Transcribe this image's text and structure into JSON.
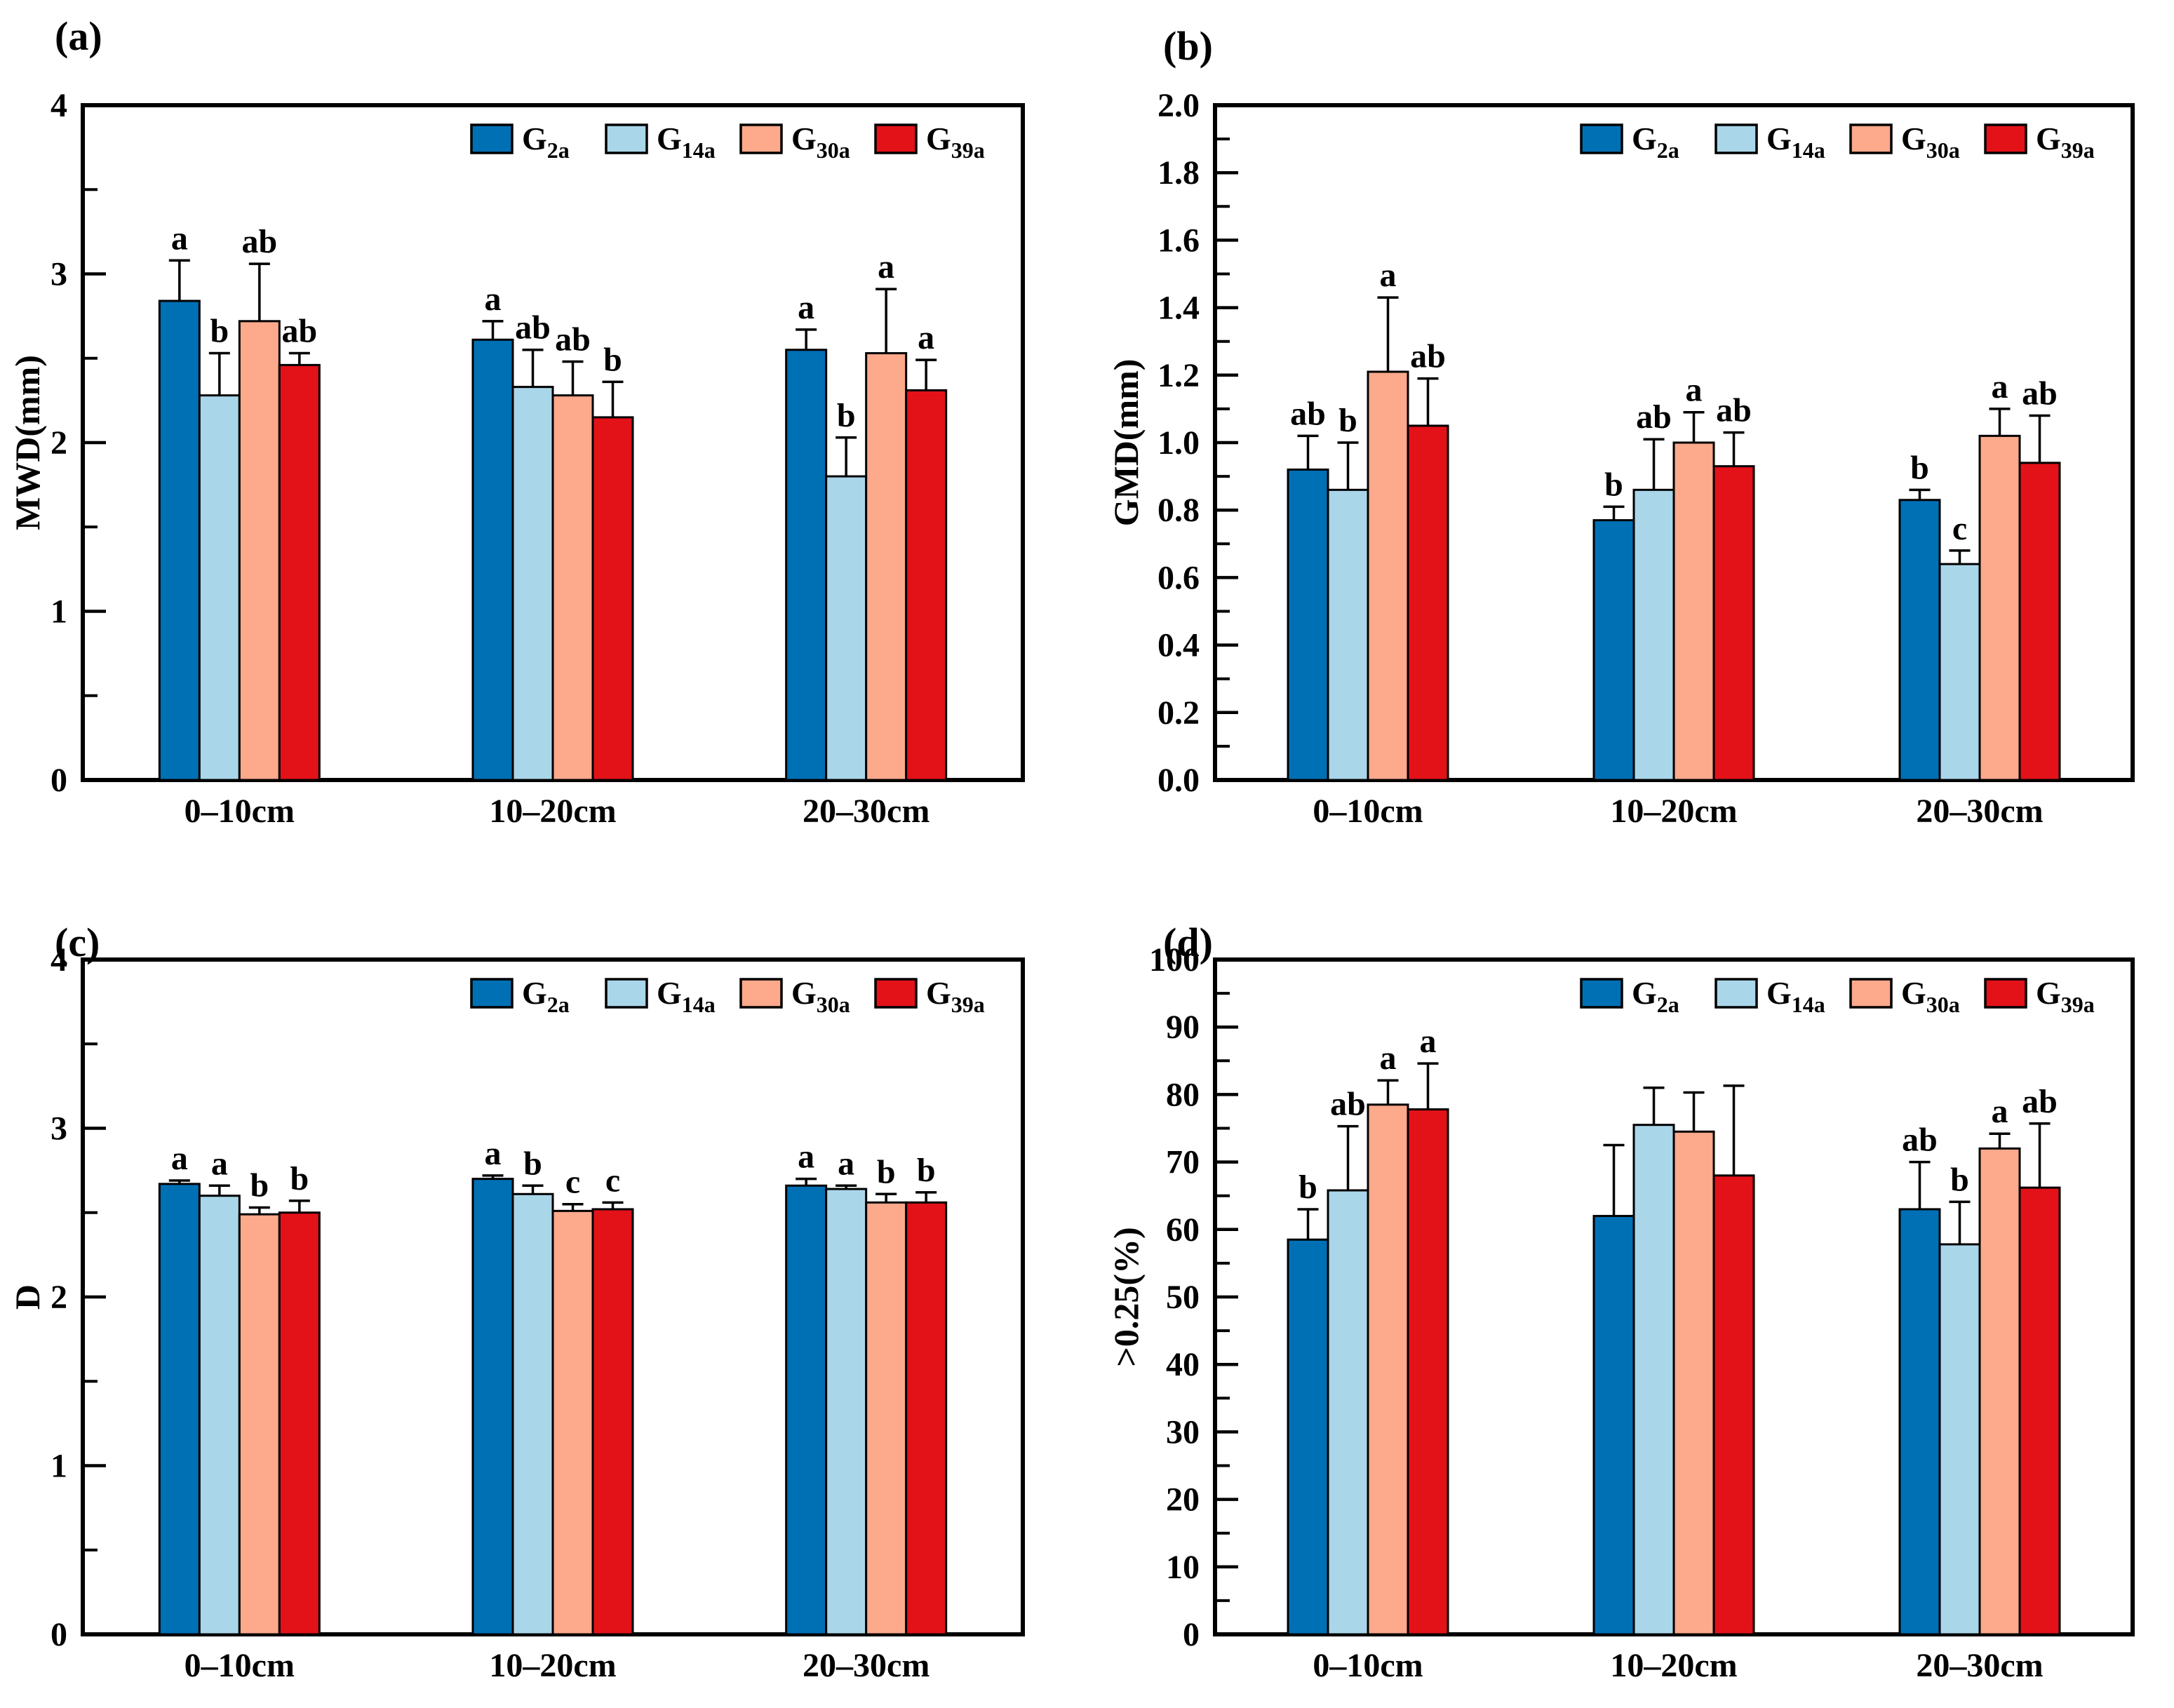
{
  "figure": {
    "background": "#ffffff",
    "axis_color": "#000000",
    "panel_labels": [
      "(a)",
      "(b)",
      "(c)",
      "(d)"
    ]
  },
  "chart_data": [
    {
      "panel_label": "(a)",
      "type": "bar",
      "title": "",
      "xlabel": "",
      "ylabel": "MWD(mm)",
      "ylim": [
        0,
        4
      ],
      "ytick_step": 1,
      "y_decimals": 0,
      "minor_divisions": 2,
      "grid": false,
      "legend_position": "top-right-inside",
      "categories": [
        "0–10cm",
        "10–20cm",
        "20–30cm"
      ],
      "series": [
        {
          "label": "G",
          "label_sub": "2a",
          "color": "#0070B5",
          "values": [
            2.84,
            2.61,
            2.55
          ],
          "errors": [
            0.24,
            0.11,
            0.12
          ],
          "sig_letters": [
            "a",
            "a",
            "a"
          ]
        },
        {
          "label": "G",
          "label_sub": "14a",
          "color": "#AAD6E9",
          "values": [
            2.28,
            2.33,
            1.8
          ],
          "errors": [
            0.25,
            0.22,
            0.23
          ],
          "sig_letters": [
            "b",
            "ab",
            "b"
          ]
        },
        {
          "label": "G",
          "label_sub": "30a",
          "color": "#FCA98C",
          "values": [
            2.72,
            2.28,
            2.53
          ],
          "errors": [
            0.34,
            0.2,
            0.38
          ],
          "sig_letters": [
            "ab",
            "ab",
            "a"
          ]
        },
        {
          "label": "G",
          "label_sub": "39a",
          "color": "#E31219",
          "values": [
            2.46,
            2.15,
            2.31
          ],
          "errors": [
            0.07,
            0.21,
            0.18
          ],
          "sig_letters": [
            "ab",
            "b",
            "a"
          ]
        }
      ]
    },
    {
      "panel_label": "(b)",
      "type": "bar",
      "title": "",
      "xlabel": "",
      "ylabel": "GMD(mm)",
      "ylim": [
        0,
        2
      ],
      "ytick_step": 0.2,
      "y_decimals": 1,
      "minor_divisions": 2,
      "grid": false,
      "legend_position": "top-right-inside",
      "categories": [
        "0–10cm",
        "10–20cm",
        "20–30cm"
      ],
      "series": [
        {
          "label": "G",
          "label_sub": "2a",
          "color": "#0070B5",
          "values": [
            0.92,
            0.77,
            0.83
          ],
          "errors": [
            0.1,
            0.04,
            0.03
          ],
          "sig_letters": [
            "ab",
            "b",
            "b"
          ]
        },
        {
          "label": "G",
          "label_sub": "14a",
          "color": "#AAD6E9",
          "values": [
            0.86,
            0.86,
            0.64
          ],
          "errors": [
            0.14,
            0.15,
            0.04
          ],
          "sig_letters": [
            "b",
            "ab",
            "c"
          ]
        },
        {
          "label": "G",
          "label_sub": "30a",
          "color": "#FCA98C",
          "values": [
            1.21,
            1.0,
            1.02
          ],
          "errors": [
            0.22,
            0.09,
            0.08
          ],
          "sig_letters": [
            "a",
            "a",
            "a"
          ]
        },
        {
          "label": "G",
          "label_sub": "39a",
          "color": "#E31219",
          "values": [
            1.05,
            0.93,
            0.94
          ],
          "errors": [
            0.14,
            0.1,
            0.14
          ],
          "sig_letters": [
            "ab",
            "ab",
            "ab"
          ]
        }
      ]
    },
    {
      "panel_label": "(c)",
      "type": "bar",
      "title": "",
      "xlabel": "",
      "ylabel": "D",
      "ylim": [
        0,
        4
      ],
      "ytick_step": 1,
      "y_decimals": 0,
      "minor_divisions": 2,
      "grid": false,
      "legend_position": "top-right-inside",
      "categories": [
        "0–10cm",
        "10–20cm",
        "20–30cm"
      ],
      "series": [
        {
          "label": "G",
          "label_sub": "2a",
          "color": "#0070B5",
          "values": [
            2.67,
            2.7,
            2.66
          ],
          "errors": [
            0.02,
            0.02,
            0.04
          ],
          "sig_letters": [
            "a",
            "a",
            "a"
          ]
        },
        {
          "label": "G",
          "label_sub": "14a",
          "color": "#AAD6E9",
          "values": [
            2.6,
            2.61,
            2.64
          ],
          "errors": [
            0.06,
            0.05,
            0.02
          ],
          "sig_letters": [
            "a",
            "b",
            "a"
          ]
        },
        {
          "label": "G",
          "label_sub": "30a",
          "color": "#FCA98C",
          "values": [
            2.49,
            2.51,
            2.56
          ],
          "errors": [
            0.04,
            0.04,
            0.05
          ],
          "sig_letters": [
            "b",
            "c",
            "b"
          ]
        },
        {
          "label": "G",
          "label_sub": "39a",
          "color": "#E31219",
          "values": [
            2.5,
            2.52,
            2.56
          ],
          "errors": [
            0.07,
            0.04,
            0.06
          ],
          "sig_letters": [
            "b",
            "c",
            "b"
          ]
        }
      ]
    },
    {
      "panel_label": "(d)",
      "type": "bar",
      "title": "",
      "xlabel": "",
      "ylabel": ">0.25(%)",
      "ylim": [
        0,
        100
      ],
      "ytick_step": 10,
      "y_decimals": 0,
      "minor_divisions": 2,
      "grid": false,
      "legend_position": "top-right-inside",
      "categories": [
        "0–10cm",
        "10–20cm",
        "20–30cm"
      ],
      "series": [
        {
          "label": "G",
          "label_sub": "2a",
          "color": "#0070B5",
          "values": [
            58.5,
            62.0,
            63.0
          ],
          "errors": [
            4.5,
            10.5,
            7.0
          ],
          "sig_letters": [
            "b",
            "",
            "ab"
          ]
        },
        {
          "label": "G",
          "label_sub": "14a",
          "color": "#AAD6E9",
          "values": [
            65.8,
            75.5,
            57.8
          ],
          "errors": [
            9.5,
            5.5,
            6.3
          ],
          "sig_letters": [
            "ab",
            "",
            "b"
          ]
        },
        {
          "label": "G",
          "label_sub": "30a",
          "color": "#FCA98C",
          "values": [
            78.5,
            74.5,
            72.0
          ],
          "errors": [
            3.6,
            5.8,
            2.2
          ],
          "sig_letters": [
            "a",
            "",
            "a"
          ]
        },
        {
          "label": "G",
          "label_sub": "39a",
          "color": "#E31219",
          "values": [
            77.8,
            68.0,
            66.2
          ],
          "errors": [
            6.8,
            13.3,
            9.5
          ],
          "sig_letters": [
            "a",
            "",
            "ab"
          ]
        }
      ]
    }
  ]
}
